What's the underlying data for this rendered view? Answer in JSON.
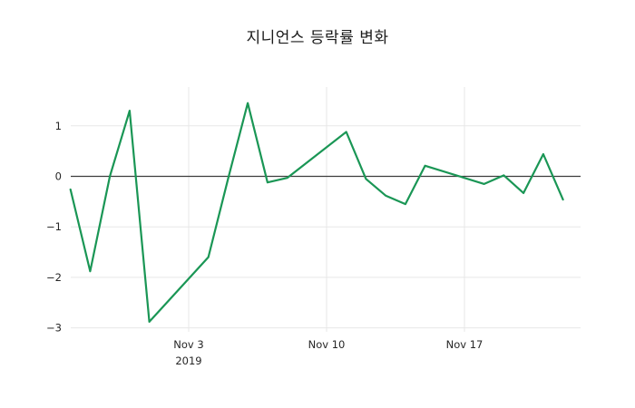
{
  "page": {
    "background": "#ffffff"
  },
  "chart_data": {
    "type": "line",
    "title": "지니언스 등락률 변화",
    "xlabel": "",
    "ylabel": "",
    "x": [
      "2019-10-28",
      "2019-10-29",
      "2019-10-30",
      "2019-10-31",
      "2019-11-01",
      "2019-11-04",
      "2019-11-05",
      "2019-11-06",
      "2019-11-07",
      "2019-11-08",
      "2019-11-11",
      "2019-11-12",
      "2019-11-13",
      "2019-11-14",
      "2019-11-15",
      "2019-11-18",
      "2019-11-19",
      "2019-11-20",
      "2019-11-21",
      "2019-11-22"
    ],
    "values": [
      -0.26,
      -1.88,
      0.0,
      1.3,
      -2.88,
      -1.6,
      -0.05,
      1.45,
      -0.12,
      -0.03,
      0.88,
      -0.05,
      -0.38,
      -0.55,
      0.21,
      -0.15,
      0.02,
      -0.33,
      0.44,
      -0.46
    ],
    "ylim": [
      -3.1,
      1.75
    ],
    "yticks": [
      {
        "label": "1",
        "value": 1
      },
      {
        "label": "0",
        "value": 0
      },
      {
        "label": "−1",
        "value": -1
      },
      {
        "label": "−2",
        "value": -2
      },
      {
        "label": "−3",
        "value": -3
      }
    ],
    "xticks": [
      {
        "label": "Nov 3",
        "sublabel": "2019",
        "date": "2019-11-03"
      },
      {
        "label": "Nov 10",
        "sublabel": "",
        "date": "2019-11-10"
      },
      {
        "label": "Nov 17",
        "sublabel": "",
        "date": "2019-11-17"
      }
    ],
    "grid": true,
    "zero_line": true,
    "legend": "none",
    "colors": {
      "line": "#1a9655",
      "grid": "#e7e7e7",
      "zero_line": "#3d3d3d",
      "text": "#262626",
      "background": "#ffffff"
    }
  }
}
